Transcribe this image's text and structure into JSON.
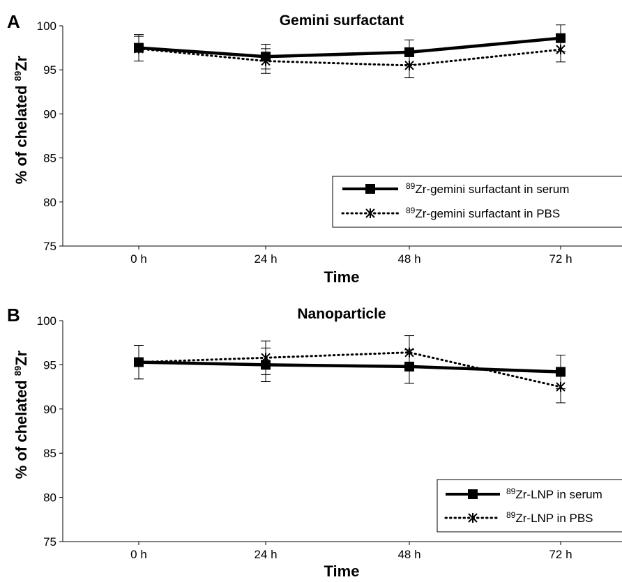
{
  "chart_data": [
    {
      "type": "line",
      "panel": "A",
      "title": "Gemini surfactant",
      "xlabel": "Time",
      "ylabel_main": "% of chelated ",
      "ylabel_sup": "89",
      "ylabel_tail": "Zr",
      "categories": [
        "0 h",
        "24 h",
        "48 h",
        "72 h"
      ],
      "ylim": [
        75,
        100
      ],
      "yticks": [
        75,
        80,
        85,
        90,
        95,
        100
      ],
      "series": [
        {
          "name_sup": "89",
          "name": "Zr-gemini surfactant in serum",
          "values": [
            97.5,
            96.5,
            97.0,
            98.6
          ],
          "error": [
            1.5,
            1.4,
            1.4,
            1.5
          ],
          "line": "solid",
          "marker": "square",
          "color": "#000000"
        },
        {
          "name_sup": "89",
          "name": "Zr-gemini surfactant in PBS",
          "values": [
            97.4,
            96.0,
            95.5,
            97.3
          ],
          "error": [
            1.4,
            1.4,
            1.4,
            1.4
          ],
          "line": "dotted",
          "marker": "asterisk",
          "color": "#000000"
        }
      ],
      "legend_position": "bottom-right"
    },
    {
      "type": "line",
      "panel": "B",
      "title": "Nanoparticle",
      "xlabel": "Time",
      "ylabel_main": "% of chelated ",
      "ylabel_sup": "89",
      "ylabel_tail": "Zr",
      "categories": [
        "0 h",
        "24 h",
        "48 h",
        "72 h"
      ],
      "ylim": [
        75,
        100
      ],
      "yticks": [
        75,
        80,
        85,
        90,
        95,
        100
      ],
      "series": [
        {
          "name_sup": "89",
          "name": "Zr-LNP in serum",
          "values": [
            95.3,
            95.0,
            94.8,
            94.2
          ],
          "error": [
            1.9,
            1.9,
            1.9,
            1.9
          ],
          "line": "solid",
          "marker": "square",
          "color": "#000000"
        },
        {
          "name_sup": "89",
          "name": "Zr-LNP in PBS",
          "values": [
            95.3,
            95.8,
            96.4,
            92.5
          ],
          "error": [
            1.9,
            1.9,
            1.9,
            1.8
          ],
          "line": "dotted",
          "marker": "asterisk",
          "color": "#000000"
        }
      ],
      "legend_position": "bottom-right"
    }
  ]
}
